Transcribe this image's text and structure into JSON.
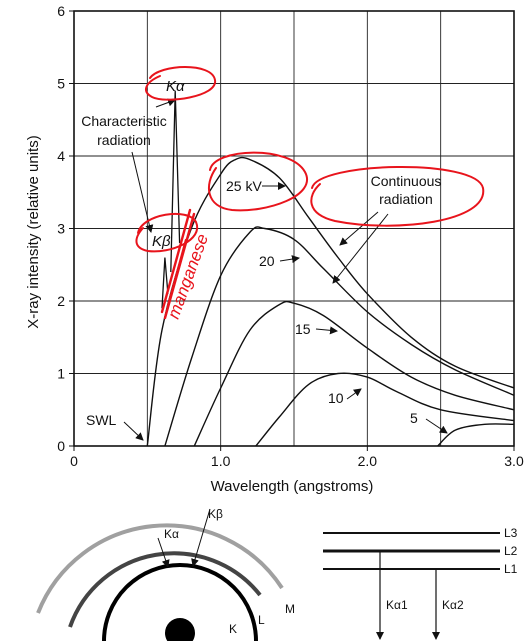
{
  "chart_data": {
    "type": "line",
    "xlabel": "Wavelength (angstroms)",
    "ylabel": "X-ray intensity (relative units)",
    "xlim": [
      0,
      3.0
    ],
    "ylim": [
      0,
      6
    ],
    "x_ticks": [
      "0",
      "1.0",
      "2.0",
      "3.0"
    ],
    "y_ticks": [
      "0",
      "1",
      "2",
      "3",
      "4",
      "5",
      "6"
    ],
    "grid": true,
    "series": [
      {
        "name": "25 kV",
        "label_text": "25 kV",
        "points": [
          [
            0.5,
            0
          ],
          [
            0.6,
            1.6
          ],
          [
            0.8,
            3.0
          ],
          [
            1.0,
            3.75
          ],
          [
            1.1,
            3.95
          ],
          [
            1.2,
            3.95
          ],
          [
            1.4,
            3.7
          ],
          [
            1.6,
            3.15
          ],
          [
            1.8,
            2.6
          ],
          [
            2.0,
            2.1
          ],
          [
            2.3,
            1.5
          ],
          [
            2.6,
            1.1
          ],
          [
            3.0,
            0.8
          ]
        ]
      },
      {
        "name": "20",
        "label_text": "20",
        "points": [
          [
            0.62,
            0
          ],
          [
            0.8,
            1.2
          ],
          [
            1.0,
            2.35
          ],
          [
            1.2,
            2.95
          ],
          [
            1.3,
            3.0
          ],
          [
            1.5,
            2.85
          ],
          [
            1.7,
            2.45
          ],
          [
            2.0,
            1.85
          ],
          [
            2.3,
            1.4
          ],
          [
            2.6,
            1.05
          ],
          [
            3.0,
            0.7
          ]
        ]
      },
      {
        "name": "15",
        "label_text": "15",
        "points": [
          [
            0.82,
            0
          ],
          [
            1.0,
            0.8
          ],
          [
            1.2,
            1.6
          ],
          [
            1.4,
            1.95
          ],
          [
            1.5,
            1.97
          ],
          [
            1.7,
            1.8
          ],
          [
            2.0,
            1.35
          ],
          [
            2.3,
            0.95
          ],
          [
            2.6,
            0.7
          ],
          [
            3.0,
            0.5
          ]
        ]
      },
      {
        "name": "10",
        "label_text": "10",
        "points": [
          [
            1.24,
            0
          ],
          [
            1.4,
            0.4
          ],
          [
            1.6,
            0.85
          ],
          [
            1.8,
            1.0
          ],
          [
            2.0,
            0.95
          ],
          [
            2.2,
            0.75
          ],
          [
            2.5,
            0.5
          ],
          [
            3.0,
            0.35
          ]
        ]
      },
      {
        "name": "5",
        "label_text": "5",
        "points": [
          [
            2.48,
            0
          ],
          [
            2.6,
            0.22
          ],
          [
            2.8,
            0.3
          ],
          [
            3.0,
            0.3
          ]
        ]
      }
    ],
    "peaks": [
      {
        "name": "K-beta",
        "points": [
          [
            0.6,
            1.9
          ],
          [
            0.62,
            2.6
          ],
          [
            0.64,
            2.1
          ]
        ]
      },
      {
        "name": "K-alpha",
        "points": [
          [
            0.66,
            2.4
          ],
          [
            0.69,
            4.9
          ],
          [
            0.72,
            2.8
          ]
        ]
      }
    ],
    "annotations": {
      "k_alpha": "Kα",
      "k_beta": "Kβ",
      "characteristic_line1": "Characteristic",
      "characteristic_line2": "radiation",
      "continuous_line1": "Continuous",
      "continuous_line2": "radiation",
      "swl": "SWL",
      "handwritten": "manganese"
    },
    "ink_color": "#e8141c",
    "curve_color": "#111111"
  },
  "shell_diagram": {
    "shells": [
      "K",
      "L",
      "M"
    ],
    "transitions": [
      "Kα",
      "Kβ"
    ],
    "shell_colors": [
      "#000000",
      "#555555",
      "#a0a0a0"
    ]
  },
  "level_diagram": {
    "levels": [
      "L3",
      "L2",
      "L1"
    ],
    "transitions": [
      "Kα1",
      "Kα2"
    ]
  }
}
